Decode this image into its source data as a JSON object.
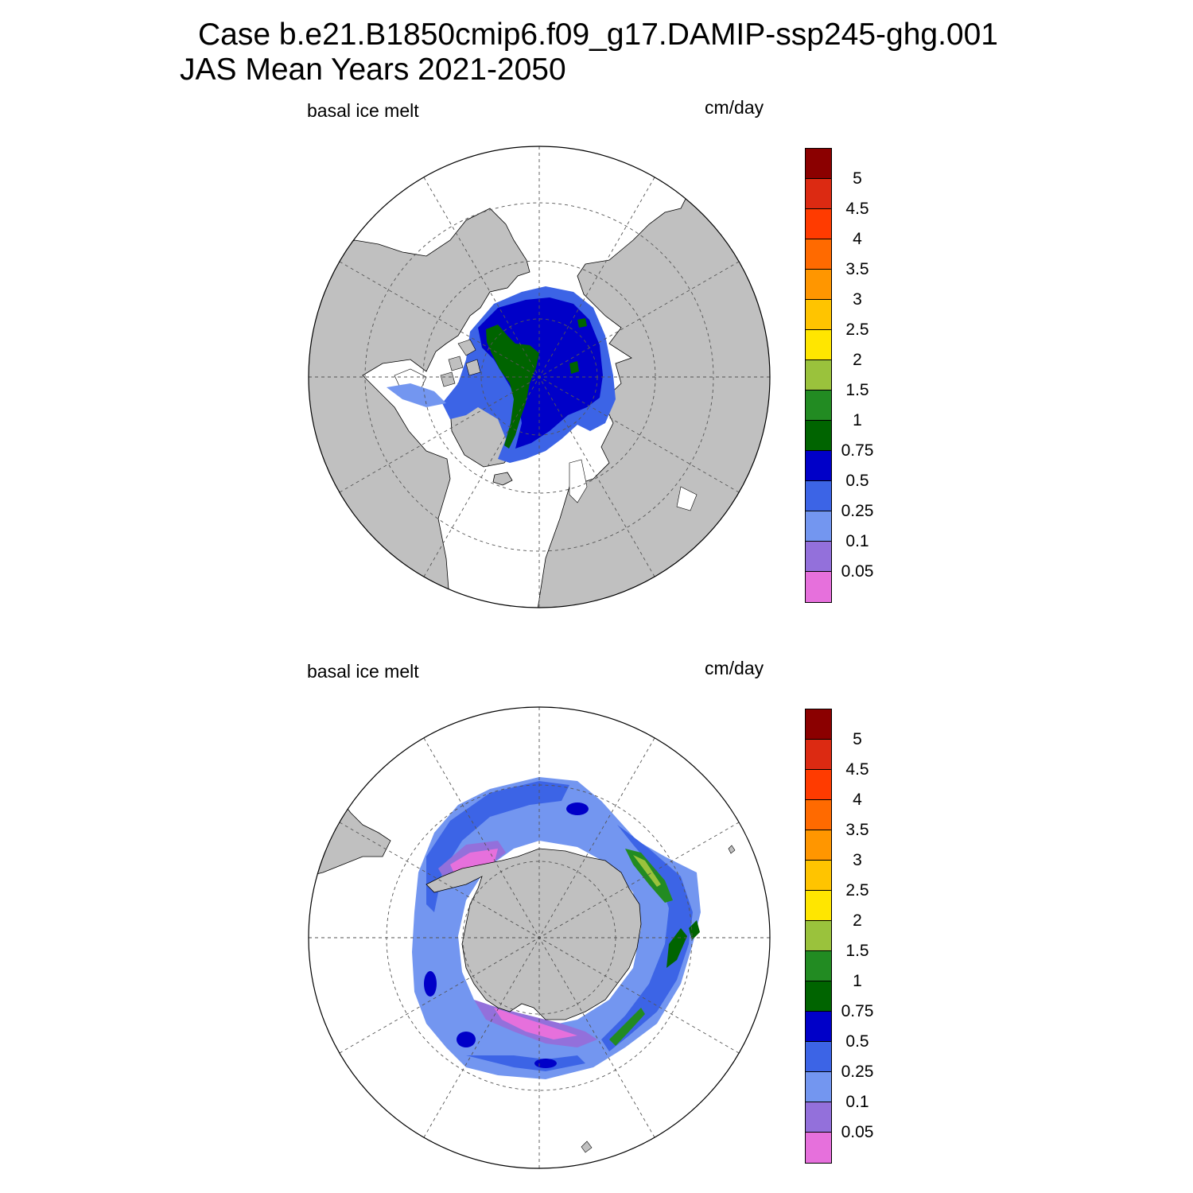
{
  "title": {
    "line1": "Case b.e21.B1850cmip6.f09_g17.DAMIP-ssp245-ghg.001",
    "line2": "JAS Mean   Years 2021-2050"
  },
  "panels": [
    {
      "id": "arctic",
      "hemisphere": "north",
      "left_label": "basal ice melt",
      "right_label": "cm/day"
    },
    {
      "id": "antarctic",
      "hemisphere": "south",
      "left_label": "basal ice melt",
      "right_label": "cm/day"
    }
  ],
  "colorbar": {
    "labels": [
      "5",
      "4.5",
      "4",
      "3.5",
      "3",
      "2.5",
      "2",
      "1.5",
      "1",
      "0.75",
      "0.5",
      "0.25",
      "0.1",
      "0.05"
    ],
    "colors_top_to_bottom": [
      "#8b0000",
      "#dc2a12",
      "#ff3b00",
      "#ff6a00",
      "#ff9600",
      "#ffc400",
      "#ffe600",
      "#9ac23c",
      "#228b22",
      "#006400",
      "#0000c8",
      "#3c64e6",
      "#7396f0",
      "#9370db",
      "#e670dc"
    ]
  },
  "colors": {
    "land": "#c0c0c0",
    "ocean_no_ice": "#ffffff",
    "grid": "#555555"
  }
}
